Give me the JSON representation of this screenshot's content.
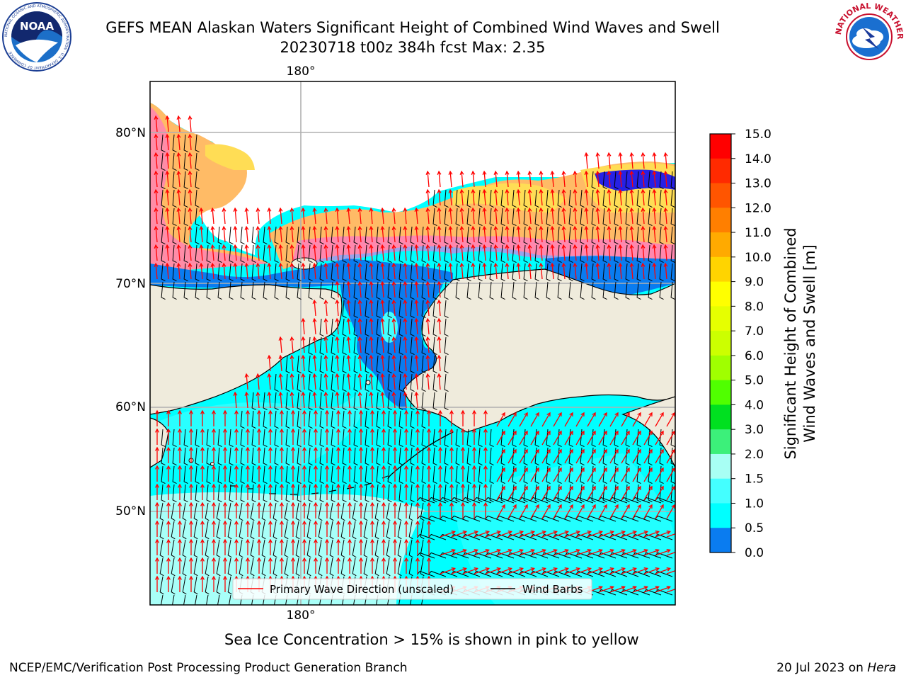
{
  "title": {
    "line1": "GEFS MEAN Alaskan Waters Significant Height of Combined Wind Waves and Swell",
    "line2": "20230718 t00z 384h fcst   Max: 2.35"
  },
  "logos": {
    "left_name": "noaa-logo",
    "left_text": "NOAA",
    "left_ring_text": "NATIONAL OCEANIC AND ATMOSPHERIC ADMINISTRATION · U.S. DEPARTMENT OF COMMERCE",
    "right_name": "nws-logo",
    "right_ring_text": "NATIONAL WEATHER SERVICE"
  },
  "map": {
    "top_lon_label": "180°",
    "bottom_lon_label": "180°",
    "lat_labels": [
      "80°N",
      "70°N",
      "60°N",
      "50°N"
    ],
    "colors": {
      "land": "#efebdc",
      "ocean_low": "#00ffff",
      "ocean_mid": "#44ffff",
      "ocean_swell": "#a8fff8",
      "coast_blue": "#0a7cf0",
      "deep_blue": "#0000ff",
      "ice_pink": "#ff66dd",
      "ice_orange": "#ffbb66",
      "ice_yellow": "#ffdd55",
      "wave_arrow": "#ff0000",
      "wind_barb": "#000000",
      "grid": "#b0b0b0"
    }
  },
  "legend": {
    "wave_label": "Primary Wave Direction (unscaled)",
    "wind_label": "Wind Barbs"
  },
  "colorbar": {
    "label_line1": "Significant Height of Combined",
    "label_line2": "Wind Waves and Swell [m]",
    "ticks": [
      "15.0",
      "14.0",
      "13.0",
      "12.0",
      "11.0",
      "10.0",
      "9.0",
      "8.0",
      "7.0",
      "6.0",
      "5.0",
      "4.0",
      "3.0",
      "2.0",
      "1.5",
      "1.0",
      "0.5",
      "0.0"
    ],
    "colors": [
      "#ff0000",
      "#ff2a00",
      "#ff5500",
      "#ff7f00",
      "#ffaa00",
      "#ffd400",
      "#ffff00",
      "#e6ff00",
      "#ccff00",
      "#a0ff00",
      "#50ff00",
      "#00e020",
      "#3cf07a",
      "#a8fff4",
      "#44ffff",
      "#00ffff",
      "#0a7cf0",
      "#0000ff"
    ]
  },
  "notes": {
    "ice": "Sea Ice Concentration > 15% is shown in pink to yellow",
    "credit": "NCEP/EMC/Verification Post Processing Product Generation Branch",
    "date": "20 Jul 2023 on ",
    "machine": "Hera"
  }
}
